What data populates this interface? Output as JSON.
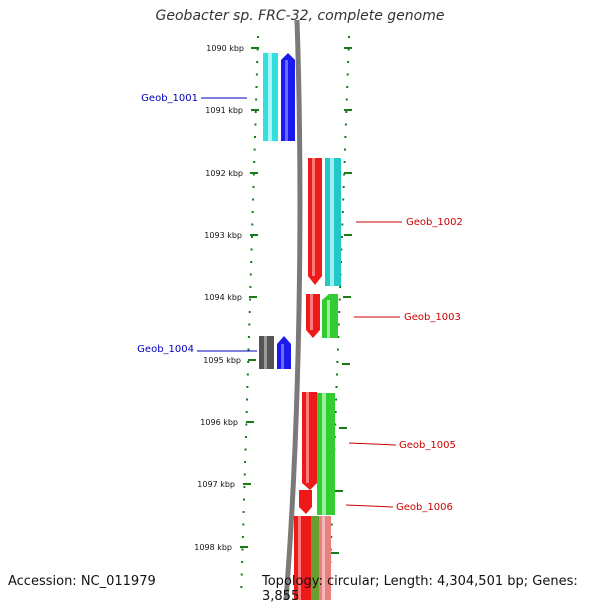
{
  "title": "Geobacter sp. FRC-32, complete genome",
  "accession_text": "Accession: NC_011979",
  "topology_text": "Topology: circular; Length: 4,304,501 bp; Genes: 3,855",
  "colors": {
    "scale_tick": "#1a7a1a",
    "backbone": "#7a7a7a",
    "label_left": "#0000bb",
    "label_right": "#cc0000",
    "cyan": "#33dede",
    "blue": "#1a1aee",
    "red": "#ee1a1a",
    "teal": "#22c8c8",
    "green": "#33cc33",
    "gray": "#555555",
    "pink": "#e88080",
    "olive": "#6aa030"
  },
  "kbp_labels": [
    "1090 kbp",
    "1091 kbp",
    "1092 kbp",
    "1093 kbp",
    "1094 kbp",
    "1095 kbp",
    "1096 kbp",
    "1097 kbp",
    "1098 kbp"
  ],
  "gene_labels": [
    {
      "name": "Geob_1001",
      "side": "left"
    },
    {
      "name": "Geob_1002",
      "side": "right"
    },
    {
      "name": "Geob_1003",
      "side": "right"
    },
    {
      "name": "Geob_1004",
      "side": "left"
    },
    {
      "name": "Geob_1005",
      "side": "right"
    },
    {
      "name": "Geob_1006",
      "side": "right"
    }
  ]
}
